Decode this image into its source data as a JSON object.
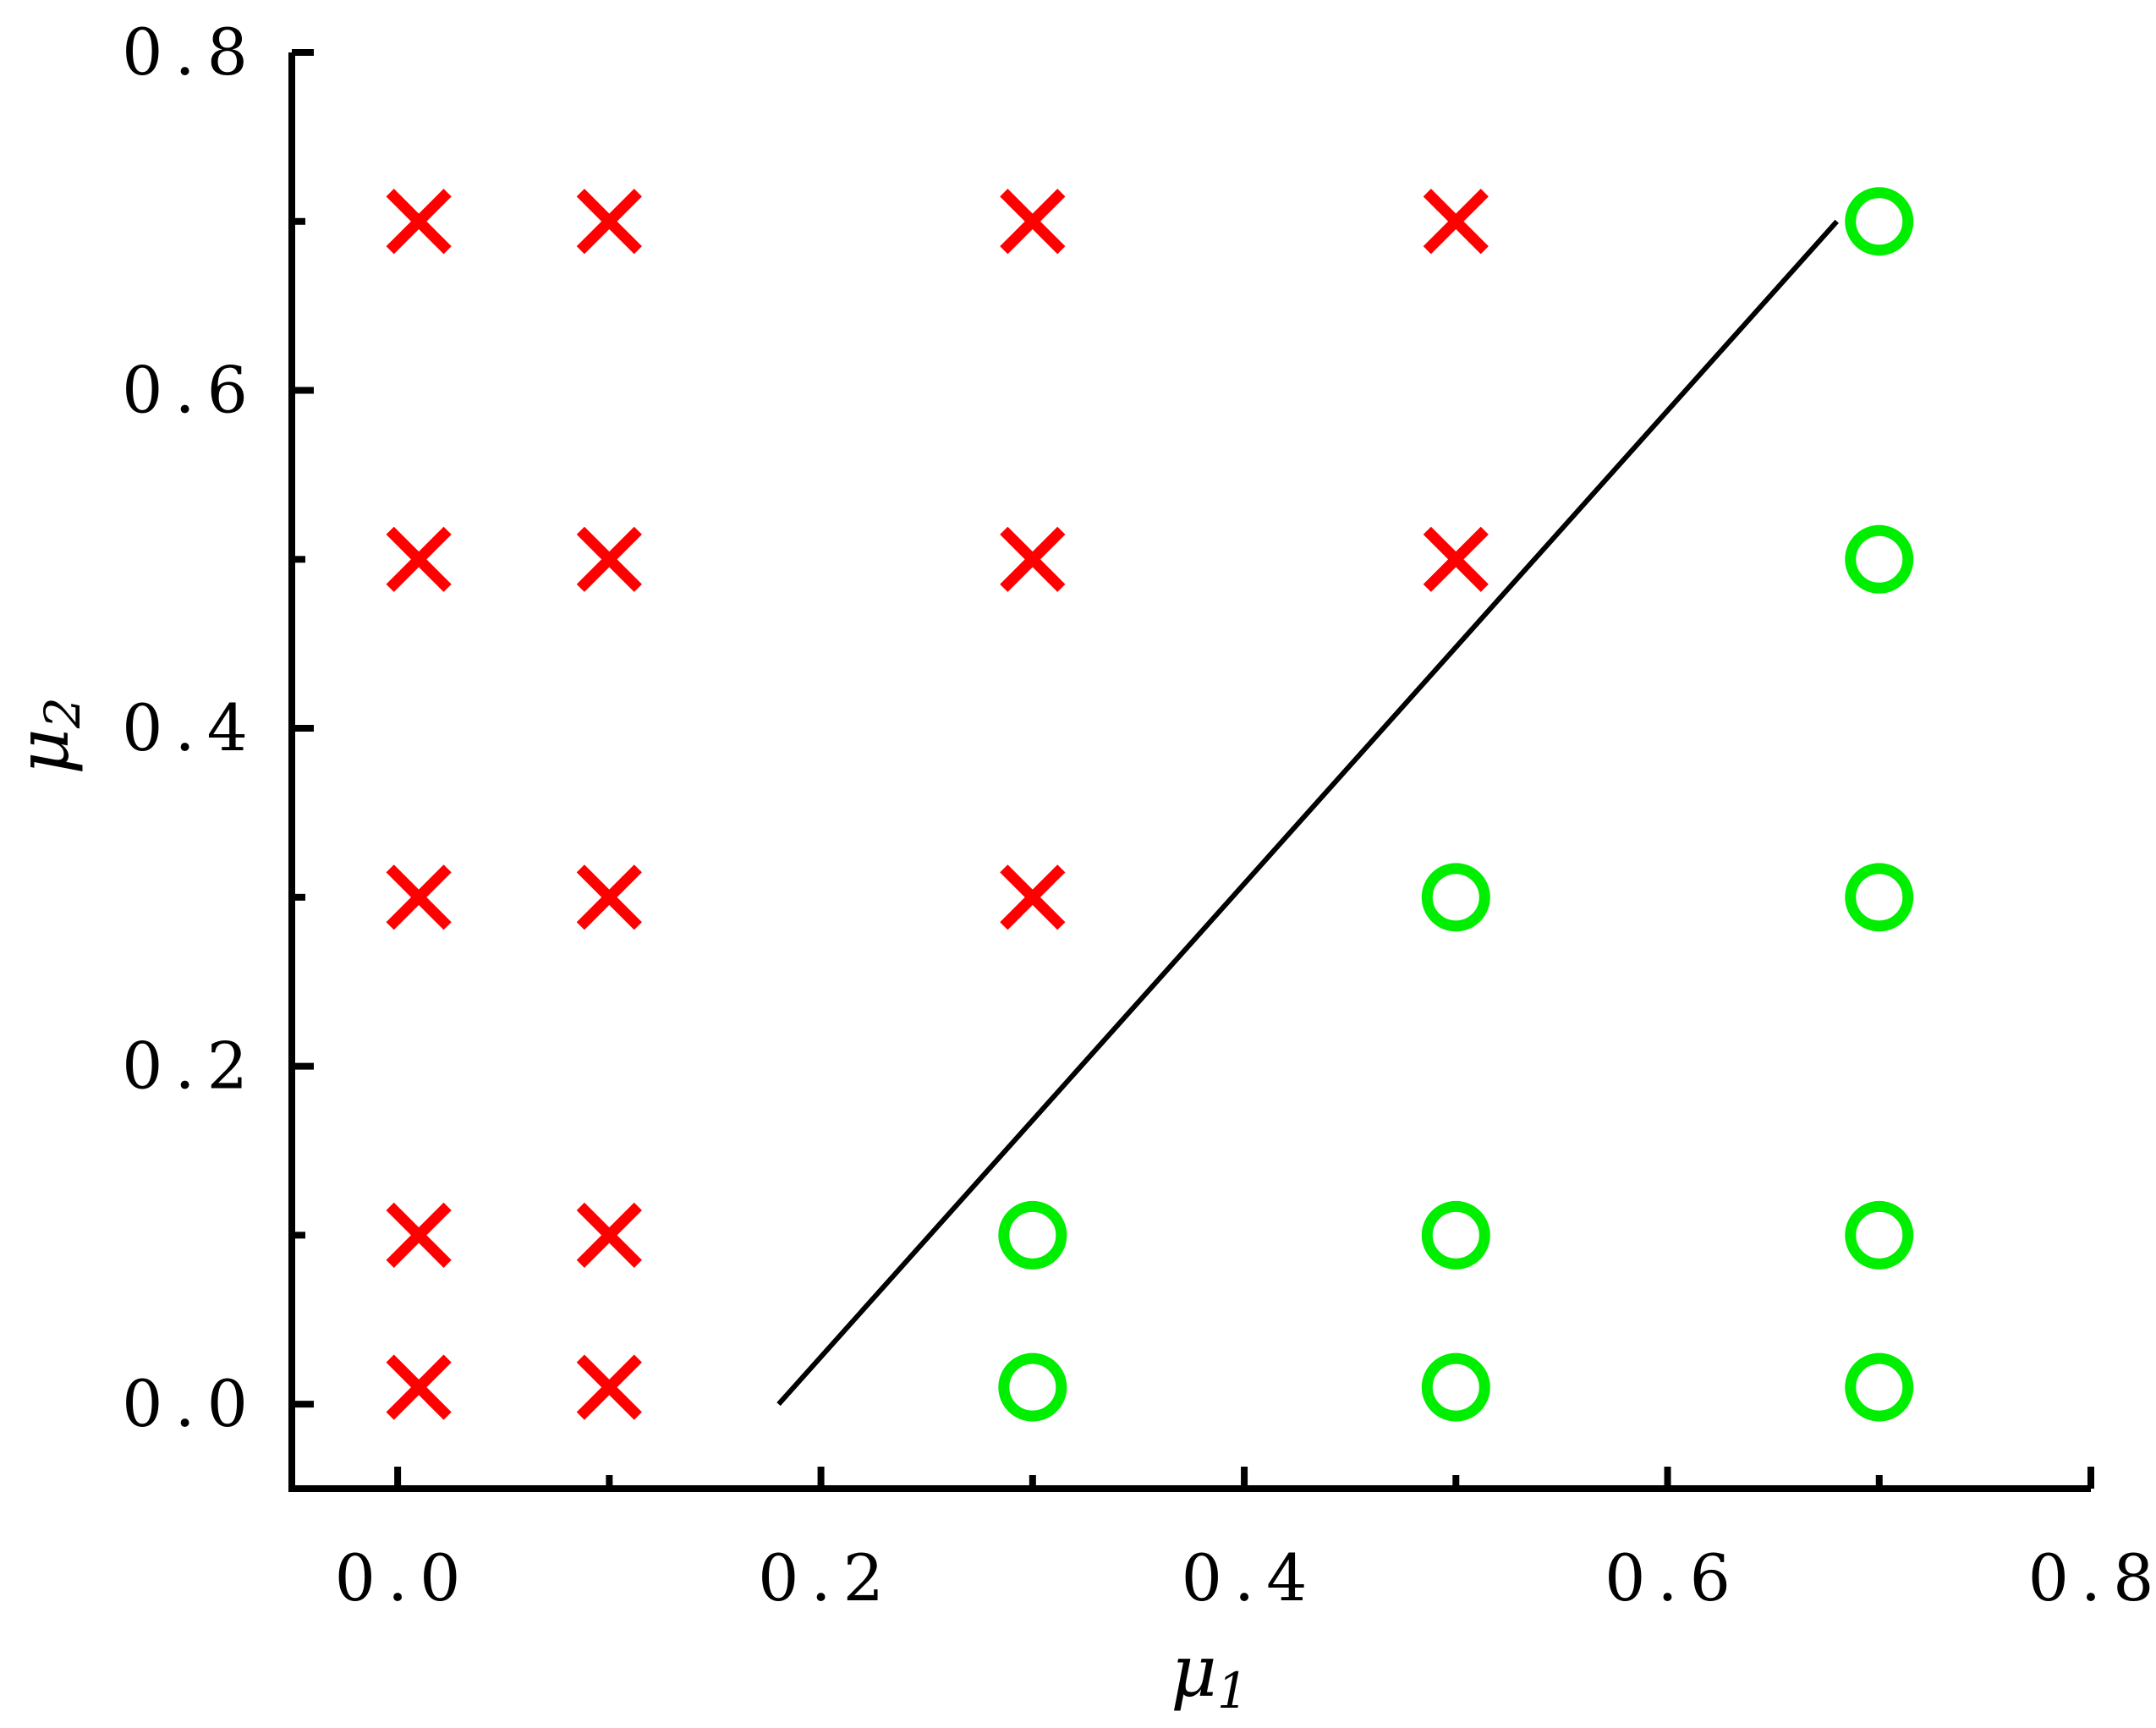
{
  "chart_data": {
    "type": "scatter",
    "title": "",
    "xlabel": "μ",
    "xlabel_subscript": "1",
    "ylabel": "μ",
    "ylabel_subscript": "2",
    "xlim": [
      -0.05,
      0.8
    ],
    "ylim": [
      -0.05,
      0.8
    ],
    "x_ticks": [
      0.0,
      0.2,
      0.4,
      0.6,
      0.8
    ],
    "x_tick_labels": [
      "0.0",
      "0.2",
      "0.4",
      "0.6",
      "0.8"
    ],
    "x_minor_ticks": [
      0.1,
      0.3,
      0.5,
      0.7
    ],
    "y_ticks": [
      0.0,
      0.2,
      0.4,
      0.6,
      0.8
    ],
    "y_tick_labels": [
      "0.0",
      "0.2",
      "0.4",
      "0.6",
      "0.8"
    ],
    "y_minor_ticks": [
      0.1,
      0.3,
      0.5,
      0.7
    ],
    "grid": false,
    "legend": "none",
    "series": [
      {
        "marker": "cross",
        "color": "#ff0000",
        "points": [
          [
            0.01,
            0.7
          ],
          [
            0.1,
            0.7
          ],
          [
            0.3,
            0.7
          ],
          [
            0.5,
            0.7
          ],
          [
            0.01,
            0.5
          ],
          [
            0.1,
            0.5
          ],
          [
            0.3,
            0.5
          ],
          [
            0.5,
            0.5
          ],
          [
            0.01,
            0.3
          ],
          [
            0.1,
            0.3
          ],
          [
            0.3,
            0.3
          ],
          [
            0.01,
            0.1
          ],
          [
            0.1,
            0.1
          ],
          [
            0.01,
            0.01
          ],
          [
            0.1,
            0.01
          ]
        ]
      },
      {
        "marker": "circle",
        "color": "#00ee00",
        "points": [
          [
            0.7,
            0.7
          ],
          [
            0.7,
            0.5
          ],
          [
            0.5,
            0.3
          ],
          [
            0.7,
            0.3
          ],
          [
            0.3,
            0.1
          ],
          [
            0.5,
            0.1
          ],
          [
            0.7,
            0.1
          ],
          [
            0.3,
            0.01
          ],
          [
            0.5,
            0.01
          ],
          [
            0.7,
            0.01
          ]
        ]
      }
    ],
    "lines": [
      {
        "color": "#000000",
        "points": [
          [
            0.18,
            0.0
          ],
          [
            0.68,
            0.7
          ]
        ]
      }
    ]
  }
}
